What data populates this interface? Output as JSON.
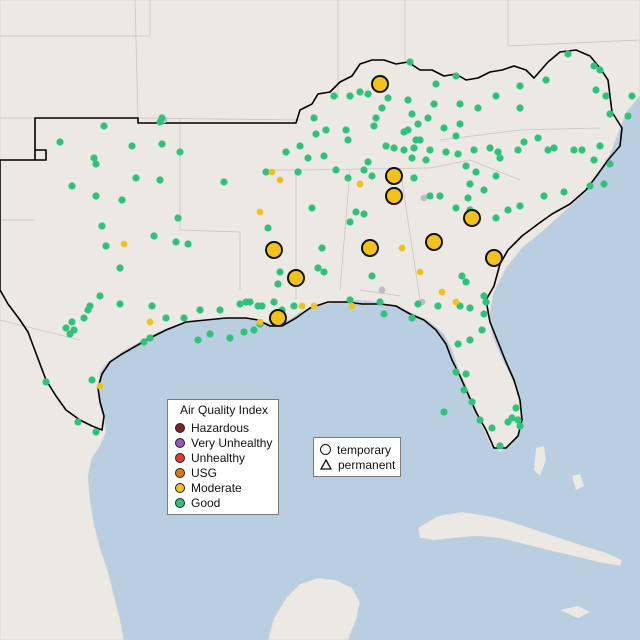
{
  "colors": {
    "water": "#b9cfe1",
    "land": "#ece8e4",
    "land_shade": "#e2ddd8",
    "border": "#c9c4c0",
    "region_outline": "#000000",
    "good": "#2fc27a",
    "moderate": "#f2c21b",
    "usg": "#e0780f",
    "unhealthy": "#e33b2b",
    "very_unhealthy": "#9358b8",
    "hazardous": "#7b2720",
    "unreported": "#b9bdc4"
  },
  "legend": {
    "title": "Air Quality Index",
    "categories": [
      {
        "label": "Hazardous",
        "color": "#7b2720"
      },
      {
        "label": "Very Unhealthy",
        "color": "#9358b8"
      },
      {
        "label": "Unhealthy",
        "color": "#e33b2b"
      },
      {
        "label": "USG",
        "color": "#e0780f"
      },
      {
        "label": "Moderate",
        "color": "#f2c21b"
      },
      {
        "label": "Good",
        "color": "#2fc27a"
      }
    ],
    "monitor_types": [
      {
        "label": "temporary",
        "shape": "circle"
      },
      {
        "label": "permanent",
        "shape": "triangle"
      }
    ]
  }
}
